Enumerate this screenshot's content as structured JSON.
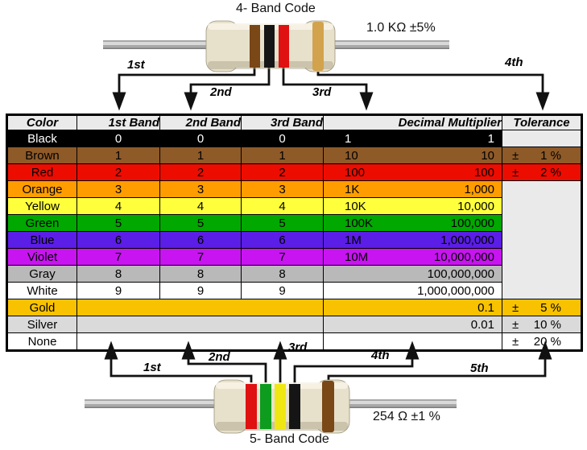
{
  "top_diagram": {
    "title": "4- Band Code",
    "value_label": "1.0 KΩ  ±5%",
    "band_labels": [
      "1st",
      "2nd",
      "3rd",
      "4th"
    ],
    "bands": [
      "brown",
      "black",
      "red",
      "gold"
    ]
  },
  "bottom_diagram": {
    "title": "5- Band Code",
    "value_label": "254 Ω  ±1 %",
    "band_labels": [
      "1st",
      "2nd",
      "3rd",
      "4th",
      "5th"
    ],
    "bands": [
      "red",
      "green",
      "yellow",
      "black",
      "brown"
    ]
  },
  "band_colors": {
    "brown": "#7a4717",
    "black": "#151515",
    "red": "#df1111",
    "gold": "#d2a24c",
    "green": "#0d9c1d",
    "yellow": "#f0e712"
  },
  "table": {
    "headers": [
      "Color",
      "1st Band",
      "2nd Band",
      "3rd Band",
      "Decimal Multiplier",
      "Tolerance"
    ],
    "plus_minus": "±",
    "empty_bg": "#EAEAEA",
    "rows": [
      {
        "name": "Black",
        "bg": "#000000",
        "fg": "#ffffff",
        "b1": "0",
        "b2": "0",
        "b3": "0",
        "mult_short": "1",
        "mult_full": "1",
        "tol": null
      },
      {
        "name": "Brown",
        "bg": "#8E5A28",
        "b1": "1",
        "b2": "1",
        "b3": "1",
        "mult_short": "10",
        "mult_full": "10",
        "tol": "1 %"
      },
      {
        "name": "Red",
        "bg": "#ED0C00",
        "b1": "2",
        "b2": "2",
        "b3": "2",
        "mult_short": "100",
        "mult_full": "100",
        "tol": "2 %"
      },
      {
        "name": "Orange",
        "bg": "#FF9D00",
        "b1": "3",
        "b2": "3",
        "b3": "3",
        "mult_short": "1K",
        "mult_full": "1,000",
        "tol": null
      },
      {
        "name": "Yellow",
        "bg": "#FFFF3C",
        "b1": "4",
        "b2": "4",
        "b3": "4",
        "mult_short": "10K",
        "mult_full": "10,000",
        "tol": null
      },
      {
        "name": "Green",
        "bg": "#00A800",
        "b1": "5",
        "b2": "5",
        "b3": "5",
        "mult_short": "100K",
        "mult_full": "100,000",
        "tol": null
      },
      {
        "name": "Blue",
        "bg": "#5A1EE6",
        "b1": "6",
        "b2": "6",
        "b3": "6",
        "mult_short": "1M",
        "mult_full": "1,000,000",
        "tol": null
      },
      {
        "name": "Violet",
        "bg": "#C814F0",
        "b1": "7",
        "b2": "7",
        "b3": "7",
        "mult_short": "10M",
        "mult_full": "10,000,000",
        "tol": null
      },
      {
        "name": "Gray",
        "bg": "#B9B9B9",
        "b1": "8",
        "b2": "8",
        "b3": "8",
        "mult_short": "",
        "mult_full": "100,000,000",
        "tol": null
      },
      {
        "name": "White",
        "bg": "#FFFFFF",
        "b1": "9",
        "b2": "9",
        "b3": "9",
        "mult_short": "",
        "mult_full": "1,000,000,000",
        "tol": null
      },
      {
        "name": "Gold",
        "bg": "#F9C200",
        "merged": true,
        "mult_short": "",
        "mult_full": "0.1",
        "tol": "5 %"
      },
      {
        "name": "Silver",
        "bg": "#DADADA",
        "merged": true,
        "mult_short": "",
        "mult_full": "0.01",
        "tol": "10 %"
      },
      {
        "name": "None",
        "bg": "#FFFFFF",
        "merged": true,
        "mult_short": "",
        "mult_full": "",
        "tol": "20 %"
      }
    ]
  }
}
